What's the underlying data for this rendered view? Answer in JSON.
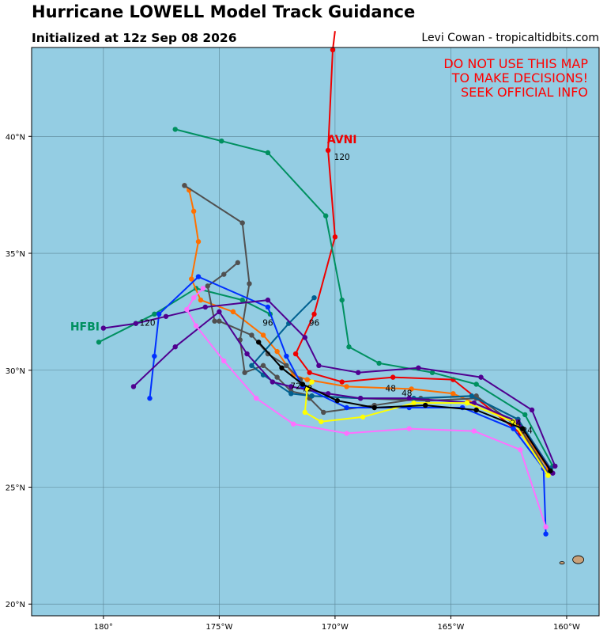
{
  "header": {
    "title": "Hurricane LOWELL Model Track Guidance",
    "subtitle": "Initialized at 12z Sep 08 2026",
    "credit": "Levi Cowan - tropicaltidbits.com"
  },
  "warning": [
    "DO NOT USE THIS MAP",
    "TO MAKE DECISIONS!",
    "SEEK OFFICIAL INFO"
  ],
  "colors": {
    "ocean": "#94cde3",
    "land": "#c9a17a",
    "grid": "#5a8596",
    "warning": "#ff0000"
  },
  "chart_data": {
    "type": "map",
    "lon_range": [
      -183.1,
      -158.6
    ],
    "lat_range": [
      19.5,
      43.8
    ],
    "x_ticks": [
      {
        "value": -180,
        "label": "180°"
      },
      {
        "value": -175,
        "label": "175°W"
      },
      {
        "value": -170,
        "label": "170°W"
      },
      {
        "value": -165,
        "label": "165°W"
      },
      {
        "value": -160,
        "label": "160°W"
      }
    ],
    "y_ticks": [
      {
        "value": 20,
        "label": "20°N"
      },
      {
        "value": 25,
        "label": "25°N"
      },
      {
        "value": 30,
        "label": "30°N"
      },
      {
        "value": 35,
        "label": "35°N"
      },
      {
        "value": 40,
        "label": "40°N"
      }
    ],
    "grid": true,
    "tracks": [
      {
        "name": "AVNI",
        "color": "#ee0000",
        "points": [
          [
            -160.7,
            25.8
          ],
          [
            -162.0,
            27.3
          ],
          [
            -164.9,
            29.6
          ],
          [
            -167.5,
            29.7
          ],
          [
            -169.7,
            29.5
          ],
          [
            -171.1,
            29.9
          ],
          [
            -171.7,
            30.7
          ],
          [
            -170.9,
            32.4
          ],
          [
            -170.0,
            35.7
          ],
          [
            -170.3,
            39.4
          ],
          [
            -170.1,
            43.7
          ],
          [
            -170.0,
            44.5
          ]
        ]
      },
      {
        "name": "HFBI",
        "color": "#009060",
        "points": [
          [
            -160.6,
            25.9
          ],
          [
            -161.8,
            28.1
          ],
          [
            -163.9,
            29.4
          ],
          [
            -165.8,
            29.9
          ],
          [
            -168.1,
            30.3
          ],
          [
            -169.4,
            31.0
          ],
          [
            -169.7,
            33.0
          ],
          [
            -170.4,
            36.6
          ],
          [
            -172.9,
            39.3
          ],
          [
            -174.9,
            39.8
          ],
          [
            -176.9,
            40.3
          ]
        ]
      },
      {
        "name": "HFBI-early",
        "color": "#009060",
        "points": [
          [
            -172.8,
            32.4
          ],
          [
            -174.0,
            33.0
          ],
          [
            -176.0,
            33.5
          ],
          [
            -177.8,
            32.4
          ],
          [
            -178.6,
            32.0
          ],
          [
            -180.2,
            31.2
          ]
        ]
      },
      {
        "name": "orange",
        "color": "#ff7000",
        "points": [
          [
            -160.8,
            25.8
          ],
          [
            -162.2,
            27.8
          ],
          [
            -164.9,
            29.0
          ],
          [
            -166.7,
            29.2
          ],
          [
            -169.5,
            29.3
          ],
          [
            -171.2,
            29.6
          ],
          [
            -171.8,
            29.8
          ],
          [
            -172.5,
            30.8
          ],
          [
            -173.1,
            31.5
          ],
          [
            -174.4,
            32.5
          ],
          [
            -175.8,
            33.0
          ],
          [
            -176.2,
            33.9
          ],
          [
            -175.9,
            35.5
          ],
          [
            -176.1,
            36.8
          ],
          [
            -176.3,
            37.7
          ],
          [
            -176.5,
            37.9
          ]
        ]
      },
      {
        "name": "darkgray1",
        "color": "#505050",
        "points": [
          [
            -160.7,
            25.8
          ],
          [
            -162.1,
            27.9
          ],
          [
            -163.9,
            28.8
          ],
          [
            -166.0,
            28.7
          ],
          [
            -168.9,
            28.8
          ],
          [
            -171.0,
            28.9
          ],
          [
            -171.9,
            29.1
          ],
          [
            -172.5,
            29.7
          ],
          [
            -173.1,
            30.2
          ],
          [
            -173.9,
            29.9
          ],
          [
            -174.1,
            31.3
          ],
          [
            -173.7,
            33.7
          ],
          [
            -174.0,
            36.3
          ],
          [
            -176.5,
            37.9
          ]
        ]
      },
      {
        "name": "darkgray2",
        "color": "#505050",
        "points": [
          [
            -160.8,
            25.6
          ],
          [
            -162.0,
            27.5
          ],
          [
            -163.9,
            28.9
          ],
          [
            -166.3,
            28.8
          ],
          [
            -168.3,
            28.5
          ],
          [
            -170.5,
            28.2
          ],
          [
            -171.1,
            28.8
          ],
          [
            -171.5,
            29.6
          ],
          [
            -172.1,
            30.2
          ],
          [
            -172.9,
            30.7
          ],
          [
            -173.6,
            31.5
          ],
          [
            -175.0,
            32.1
          ],
          [
            -175.2,
            32.1
          ],
          [
            -175.5,
            33.6
          ],
          [
            -174.8,
            34.1
          ],
          [
            -174.2,
            34.6
          ]
        ]
      },
      {
        "name": "teal",
        "color": "#006090",
        "points": [
          [
            -160.7,
            25.8
          ],
          [
            -162.1,
            27.9
          ],
          [
            -164.1,
            28.9
          ],
          [
            -166.6,
            28.8
          ],
          [
            -168.9,
            28.8
          ],
          [
            -171.0,
            28.9
          ],
          [
            -171.9,
            29.0
          ],
          [
            -173.1,
            29.8
          ],
          [
            -173.6,
            30.2
          ],
          [
            -172.0,
            32.0
          ],
          [
            -170.9,
            33.1
          ]
        ]
      },
      {
        "name": "blue",
        "color": "#0030ff",
        "points": [
          [
            -160.9,
            23.0
          ],
          [
            -161.0,
            25.8
          ],
          [
            -162.3,
            27.5
          ],
          [
            -164.5,
            28.4
          ],
          [
            -166.8,
            28.4
          ],
          [
            -169.5,
            28.4
          ],
          [
            -171.4,
            29.3
          ],
          [
            -172.1,
            30.6
          ],
          [
            -172.9,
            32.7
          ],
          [
            -175.9,
            34.0
          ],
          [
            -177.6,
            32.4
          ],
          [
            -177.8,
            30.6
          ],
          [
            -178.0,
            28.8
          ]
        ]
      },
      {
        "name": "indigo1",
        "color": "#500090",
        "points": [
          [
            -160.5,
            25.9
          ],
          [
            -161.5,
            28.3
          ],
          [
            -163.7,
            29.7
          ],
          [
            -166.4,
            30.1
          ],
          [
            -169.0,
            29.9
          ],
          [
            -170.7,
            30.2
          ],
          [
            -171.3,
            31.4
          ],
          [
            -172.9,
            33.0
          ],
          [
            -175.6,
            32.7
          ],
          [
            -177.3,
            32.3
          ],
          [
            -178.6,
            32.0
          ],
          [
            -180.0,
            31.8
          ]
        ]
      },
      {
        "name": "indigo2",
        "color": "#500090",
        "points": [
          [
            -160.6,
            25.6
          ],
          [
            -162.1,
            27.8
          ],
          [
            -164.0,
            28.6
          ],
          [
            -166.8,
            28.8
          ],
          [
            -168.9,
            28.8
          ],
          [
            -170.3,
            29.0
          ],
          [
            -171.9,
            29.3
          ],
          [
            -172.7,
            29.5
          ],
          [
            -173.8,
            30.7
          ],
          [
            -175.0,
            32.5
          ],
          [
            -176.9,
            31.0
          ],
          [
            -178.7,
            29.3
          ]
        ]
      },
      {
        "name": "pink",
        "color": "#ff70ff",
        "points": [
          [
            -160.9,
            23.3
          ],
          [
            -162.0,
            26.6
          ],
          [
            -164.0,
            27.4
          ],
          [
            -166.8,
            27.5
          ],
          [
            -169.5,
            27.3
          ],
          [
            -171.8,
            27.7
          ],
          [
            -173.4,
            28.8
          ],
          [
            -174.8,
            30.4
          ],
          [
            -176.0,
            31.9
          ],
          [
            -176.4,
            32.6
          ],
          [
            -176.1,
            33.1
          ],
          [
            -175.7,
            33.5
          ]
        ]
      },
      {
        "name": "yellow",
        "color": "#ffff00",
        "points": [
          [
            -160.8,
            25.5
          ],
          [
            -162.3,
            27.8
          ],
          [
            -164.3,
            28.6
          ],
          [
            -166.6,
            28.6
          ],
          [
            -168.8,
            28.0
          ],
          [
            -170.6,
            27.8
          ],
          [
            -171.3,
            28.2
          ],
          [
            -171.2,
            29.2
          ],
          [
            -171.0,
            29.5
          ]
        ]
      },
      {
        "name": "black",
        "color": "#000000",
        "points": [
          [
            -160.7,
            25.7
          ],
          [
            -161.9,
            27.5
          ],
          [
            -163.9,
            28.3
          ],
          [
            -166.1,
            28.5
          ],
          [
            -168.3,
            28.4
          ],
          [
            -169.9,
            28.7
          ],
          [
            -171.4,
            29.4
          ],
          [
            -172.3,
            30.1
          ],
          [
            -173.3,
            31.2
          ]
        ]
      }
    ],
    "model_labels": [
      {
        "text": "AVNI",
        "lon": -169.7,
        "lat": 39.7,
        "color": "#ee0000"
      },
      {
        "text": "HFBI",
        "lon": -180.8,
        "lat": 31.7,
        "color": "#009060"
      }
    ],
    "hour_labels": [
      {
        "text": "120",
        "lon": -169.7,
        "lat": 39.0
      },
      {
        "text": "120",
        "lon": -178.1,
        "lat": 31.9
      },
      {
        "text": "96",
        "lon": -172.9,
        "lat": 31.9
      },
      {
        "text": "96",
        "lon": -170.9,
        "lat": 31.9
      },
      {
        "text": "72",
        "lon": -171.7,
        "lat": 29.2
      },
      {
        "text": "72",
        "lon": -171.2,
        "lat": 29.1
      },
      {
        "text": "48",
        "lon": -167.6,
        "lat": 29.1
      },
      {
        "text": "48",
        "lon": -166.9,
        "lat": 28.9
      },
      {
        "text": "24",
        "lon": -162.2,
        "lat": 27.6
      },
      {
        "text": "24",
        "lon": -161.7,
        "lat": 27.3
      }
    ],
    "islands": [
      {
        "name": "oahu",
        "lon": -159.5,
        "lat": 21.9
      },
      {
        "name": "kauai",
        "lon": -160.2,
        "lat": 21.9
      }
    ]
  }
}
